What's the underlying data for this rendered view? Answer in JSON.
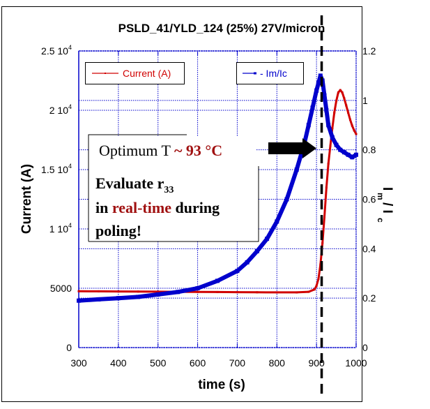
{
  "chart_data": {
    "type": "line",
    "title": "PSLD_41/YLD_124 (25%) 27V/micron",
    "xlabel": "time (s)",
    "ylabel_left": "Current (A)",
    "ylabel_right": "I_m / I_c",
    "xlim": [
      300,
      1000
    ],
    "ylim_left": [
      0,
      25000
    ],
    "ylim_right": [
      0,
      1.2
    ],
    "grid": true,
    "x_ticks": [
      "300",
      "400",
      "500",
      "600",
      "700",
      "800",
      "900",
      "1000"
    ],
    "x_tick_values": [
      300,
      400,
      500,
      600,
      700,
      800,
      900,
      1000
    ],
    "y_left_ticks": [
      {
        "value": 0,
        "label": "0",
        "exp": ""
      },
      {
        "value": 5000,
        "label": "5000",
        "exp": ""
      },
      {
        "value": 10000,
        "label": "1 10",
        "exp": "4"
      },
      {
        "value": 15000,
        "label": "1.5 10",
        "exp": "4"
      },
      {
        "value": 20000,
        "label": "2 10",
        "exp": "4"
      },
      {
        "value": 25000,
        "label": "2.5 10",
        "exp": "4"
      }
    ],
    "y_right_ticks": [
      {
        "value": 0,
        "label": "0"
      },
      {
        "value": 0.2,
        "label": "0.2"
      },
      {
        "value": 0.4,
        "label": "0.4"
      },
      {
        "value": 0.6,
        "label": "0.6"
      },
      {
        "value": 0.8,
        "label": "0.8"
      },
      {
        "value": 1.0,
        "label": "1"
      },
      {
        "value": 1.2,
        "label": "1.2"
      }
    ],
    "legend": [
      {
        "name": "Current (A)",
        "color": "#d00000",
        "position": "top-left"
      },
      {
        "name": "- Im/Ic",
        "color": "#0000cc",
        "position": "top-right"
      }
    ],
    "series": [
      {
        "name": "Current (A)",
        "axis": "left",
        "color": "#d00000",
        "x": [
          300,
          350,
          400,
          450,
          500,
          550,
          600,
          650,
          700,
          750,
          800,
          850,
          880,
          895,
          900,
          905,
          910,
          915,
          920,
          925,
          930,
          935,
          940,
          945,
          950,
          955,
          960,
          965,
          970,
          975,
          980,
          985,
          990,
          995,
          1000
        ],
        "y": [
          4750,
          4740,
          4730,
          4720,
          4710,
          4700,
          4690,
          4680,
          4670,
          4660,
          4650,
          4650,
          4700,
          4900,
          5200,
          5800,
          7000,
          8800,
          11000,
          13500,
          15500,
          17000,
          18500,
          19800,
          20800,
          21500,
          21700,
          21500,
          21000,
          20400,
          19800,
          19200,
          18700,
          18300,
          18000
        ]
      },
      {
        "name": "Im/Ic",
        "axis": "right",
        "color": "#0000cc",
        "x": [
          300,
          350,
          400,
          450,
          500,
          550,
          600,
          650,
          700,
          725,
          750,
          775,
          800,
          825,
          850,
          870,
          880,
          890,
          900,
          905,
          910,
          915,
          920,
          925,
          930,
          940,
          950,
          960,
          970,
          980,
          990,
          1000
        ],
        "y": [
          0.19,
          0.195,
          0.2,
          0.205,
          0.215,
          0.225,
          0.24,
          0.27,
          0.31,
          0.345,
          0.39,
          0.44,
          0.51,
          0.6,
          0.72,
          0.83,
          0.9,
          0.97,
          1.04,
          1.07,
          1.1,
          1.08,
          1.02,
          0.96,
          0.9,
          0.85,
          0.82,
          0.8,
          0.79,
          0.78,
          0.77,
          0.78
        ]
      }
    ],
    "vertical_marker": {
      "x": 913,
      "style": "dashed",
      "color": "#000000"
    },
    "annotations": {
      "optimum_prefix": "Optimum T ",
      "optimum_value": "~ 93 °C",
      "eval_line1": "Evaluate r",
      "eval_sub": "33",
      "eval_line2_a": "in ",
      "eval_line2_red": "real-time",
      "eval_line2_b": " during",
      "eval_line3": "poling!"
    },
    "colors": {
      "grid": "#0000cc",
      "axis": "#0000cc",
      "current": "#d00000",
      "ratio": "#0000cc",
      "highlight": "#a01010"
    }
  }
}
